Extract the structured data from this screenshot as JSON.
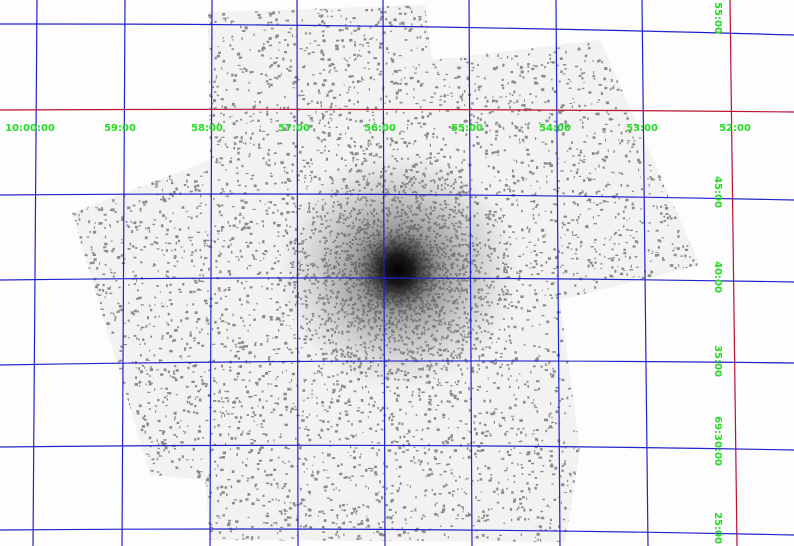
{
  "ra_labels": [
    "10:00:00",
    "59:00",
    "58:00",
    "57:00",
    "56:00",
    "55:00",
    "54:00",
    "53:00",
    "52:00"
  ],
  "dec_labels": [
    "55:00",
    "45:00",
    "40:00",
    "35:00",
    "69:30:00",
    "25:00"
  ]
}
